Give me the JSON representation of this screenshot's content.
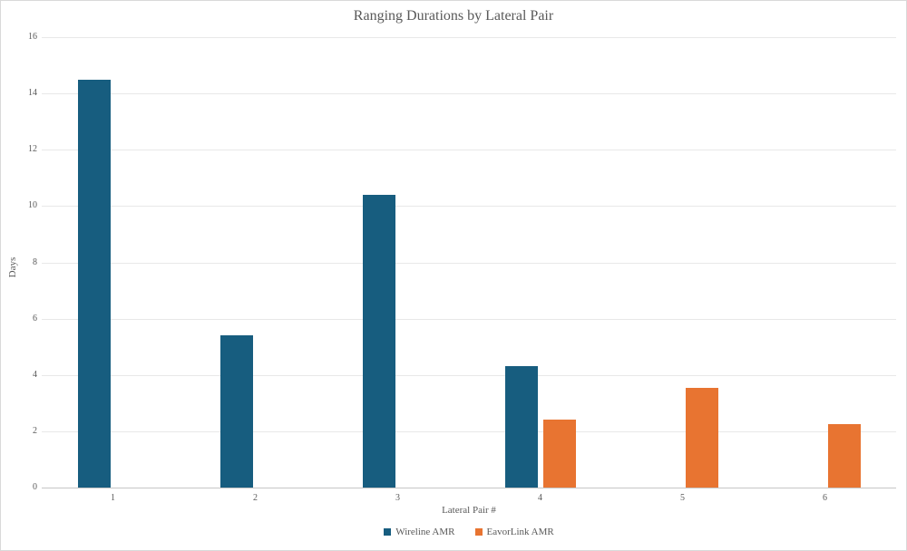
{
  "chart_data": {
    "type": "bar",
    "title": "Ranging Durations by Lateral Pair",
    "xlabel": "Lateral Pair #",
    "ylabel": "Days",
    "categories": [
      "1",
      "2",
      "3",
      "4",
      "5",
      "6"
    ],
    "series": [
      {
        "name": "Wireline AMR",
        "color": "#175d7f",
        "values": [
          14.5,
          5.4,
          10.4,
          4.3,
          null,
          null
        ]
      },
      {
        "name": "EavorLink AMR",
        "color": "#e87431",
        "values": [
          null,
          null,
          null,
          2.4,
          3.55,
          2.25
        ]
      }
    ],
    "ylim": [
      0,
      16
    ],
    "ytick_step": 2,
    "grid": true,
    "legend_position": "bottom",
    "colors": {
      "text": "#595959",
      "gridline": "#e8e8e8",
      "axisline": "#c6c6c6",
      "border": "#d9d9d9"
    }
  }
}
